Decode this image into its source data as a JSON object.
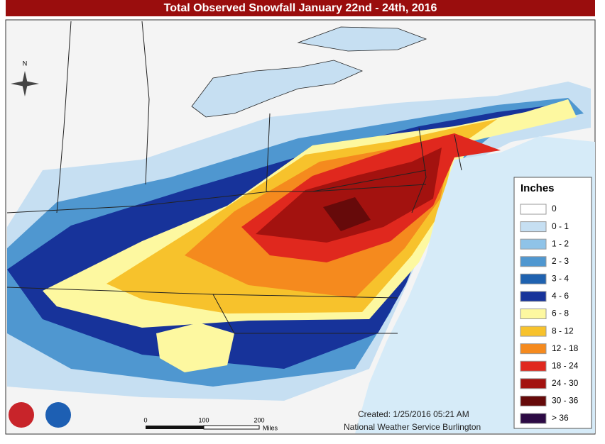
{
  "title": "Total Observed Snowfall January 22nd - 24th, 2016",
  "compass": "N",
  "legend": {
    "title": "Inches",
    "items": [
      {
        "label": "0",
        "color": "#ffffff"
      },
      {
        "label": "0 - 1",
        "color": "#c6dff2"
      },
      {
        "label": "1 - 2",
        "color": "#8fc3e8"
      },
      {
        "label": "2 - 3",
        "color": "#4f97d0"
      },
      {
        "label": "3 - 4",
        "color": "#1f62b0"
      },
      {
        "label": "4 - 6",
        "color": "#17339a"
      },
      {
        "label": "6 - 8",
        "color": "#fdf8a0"
      },
      {
        "label": "8 - 12",
        "color": "#f7c22c"
      },
      {
        "label": "12 - 18",
        "color": "#f58a1e"
      },
      {
        "label": "18 - 24",
        "color": "#e0281e"
      },
      {
        "label": "24 - 30",
        "color": "#a3120f"
      },
      {
        "label": "30 - 36",
        "color": "#660a0a"
      },
      {
        "label": "> 36",
        "color": "#2c0a44"
      }
    ]
  },
  "scale": {
    "labels": [
      "0",
      "100",
      "200"
    ],
    "unit": "Miles"
  },
  "credit": {
    "created": "Created: 1/25/2016 05:21 AM",
    "office": "National Weather Service Burlington"
  }
}
